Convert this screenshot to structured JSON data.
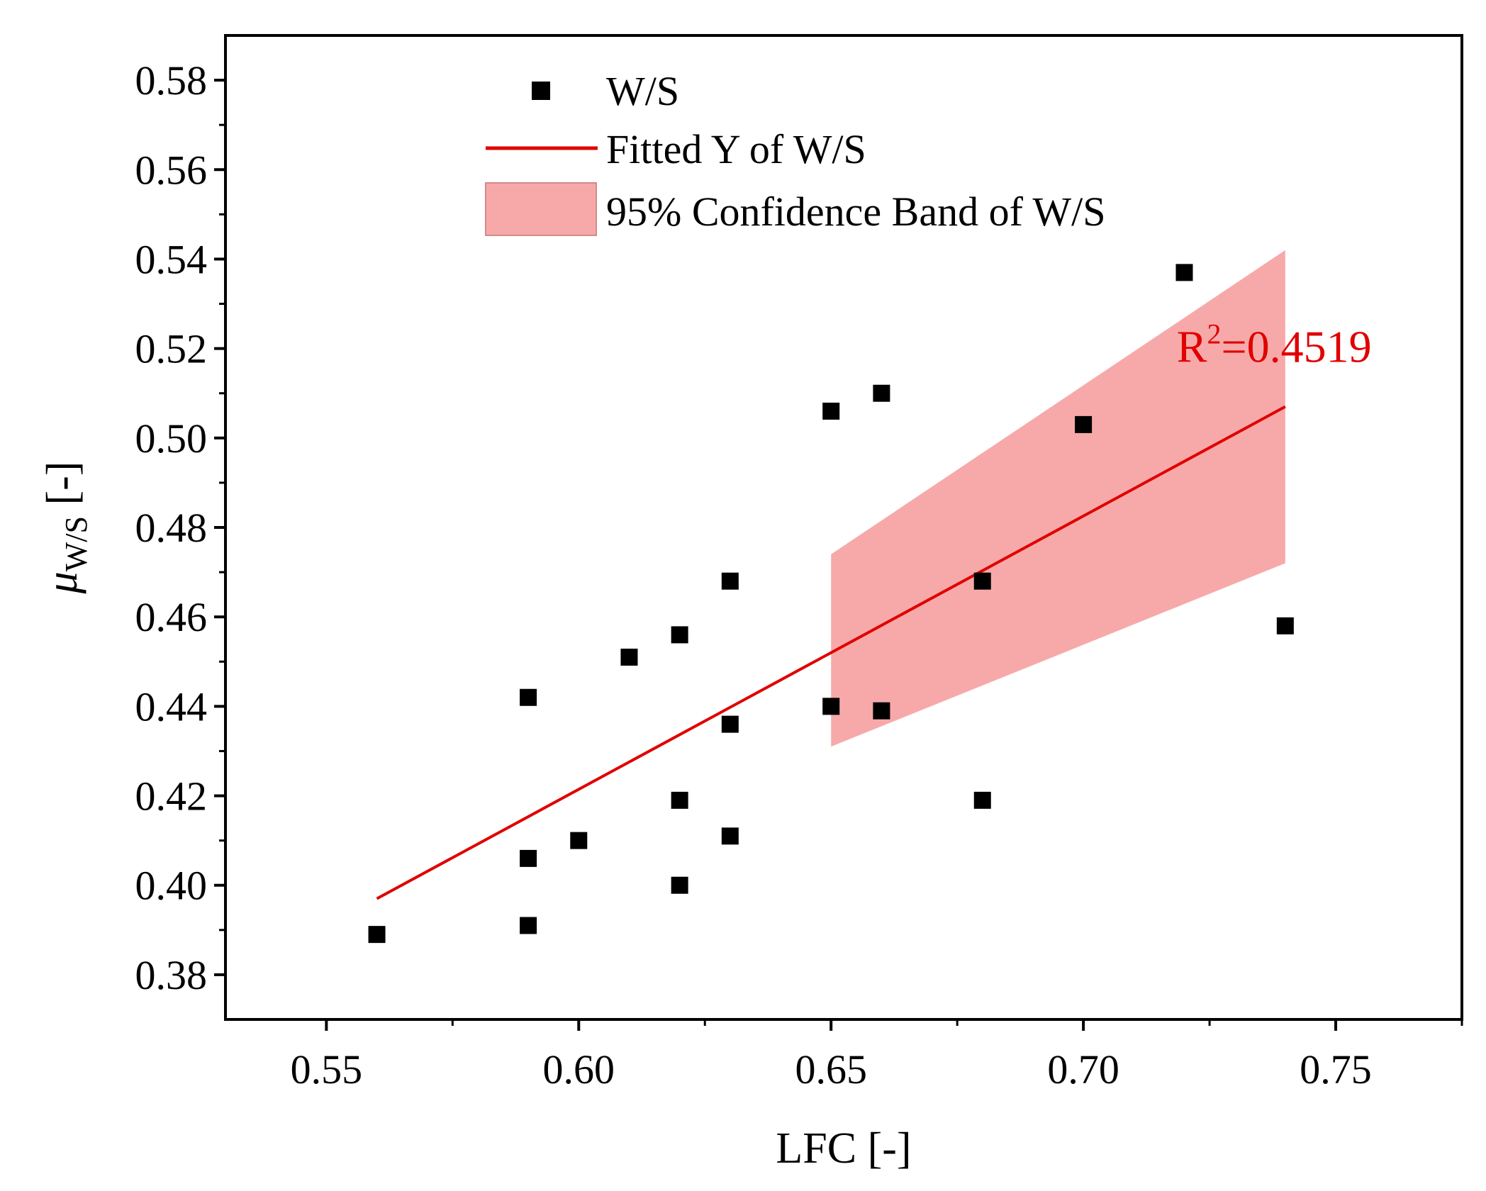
{
  "chart_data": {
    "type": "scatter",
    "title": "",
    "xlabel": "LFC [-]",
    "ylabel": {
      "symbol": "μ",
      "subscript": "W/S",
      "suffix": " [-]"
    },
    "xlim": [
      0.53,
      0.775
    ],
    "ylim": [
      0.37,
      0.59
    ],
    "xticks": [
      0.55,
      0.6,
      0.65,
      0.7,
      0.75
    ],
    "xtick_labels": [
      "0.55",
      "0.60",
      "0.65",
      "0.70",
      "0.75"
    ],
    "yticks": [
      0.38,
      0.4,
      0.42,
      0.44,
      0.46,
      0.48,
      0.5,
      0.52,
      0.54,
      0.56,
      0.58
    ],
    "ytick_labels": [
      "0.38",
      "0.40",
      "0.42",
      "0.44",
      "0.46",
      "0.48",
      "0.50",
      "0.52",
      "0.54",
      "0.56",
      "0.58"
    ],
    "grid": false,
    "legend_position": "top-center",
    "series": [
      {
        "name": "W/S",
        "kind": "scatter",
        "color": "#000000",
        "points": [
          {
            "x": 0.56,
            "y": 0.389
          },
          {
            "x": 0.59,
            "y": 0.391
          },
          {
            "x": 0.59,
            "y": 0.406
          },
          {
            "x": 0.59,
            "y": 0.442
          },
          {
            "x": 0.6,
            "y": 0.41
          },
          {
            "x": 0.61,
            "y": 0.451
          },
          {
            "x": 0.62,
            "y": 0.4
          },
          {
            "x": 0.62,
            "y": 0.419
          },
          {
            "x": 0.62,
            "y": 0.456
          },
          {
            "x": 0.63,
            "y": 0.411
          },
          {
            "x": 0.63,
            "y": 0.436
          },
          {
            "x": 0.63,
            "y": 0.468
          },
          {
            "x": 0.65,
            "y": 0.44
          },
          {
            "x": 0.65,
            "y": 0.506
          },
          {
            "x": 0.66,
            "y": 0.439
          },
          {
            "x": 0.66,
            "y": 0.51
          },
          {
            "x": 0.68,
            "y": 0.419
          },
          {
            "x": 0.68,
            "y": 0.468
          },
          {
            "x": 0.7,
            "y": 0.503
          },
          {
            "x": 0.72,
            "y": 0.537
          },
          {
            "x": 0.74,
            "y": 0.458
          }
        ]
      },
      {
        "name": "Fitted Y of W/S",
        "kind": "line",
        "color": "#e00000",
        "x": [
          0.56,
          0.74
        ],
        "y": [
          0.397,
          0.507
        ]
      },
      {
        "name": "95% Confidence Band of W/S",
        "kind": "band",
        "color": "#f7a9a9",
        "x": [
          0.65,
          0.74
        ],
        "lower": [
          0.431,
          0.472
        ],
        "upper": [
          0.474,
          0.542
        ]
      }
    ],
    "annotations": [
      {
        "text_base": "R",
        "text_sup": "2",
        "text_rest": "=0.4519",
        "x": 0.7185,
        "y": 0.517,
        "color": "#e00000"
      }
    ]
  }
}
